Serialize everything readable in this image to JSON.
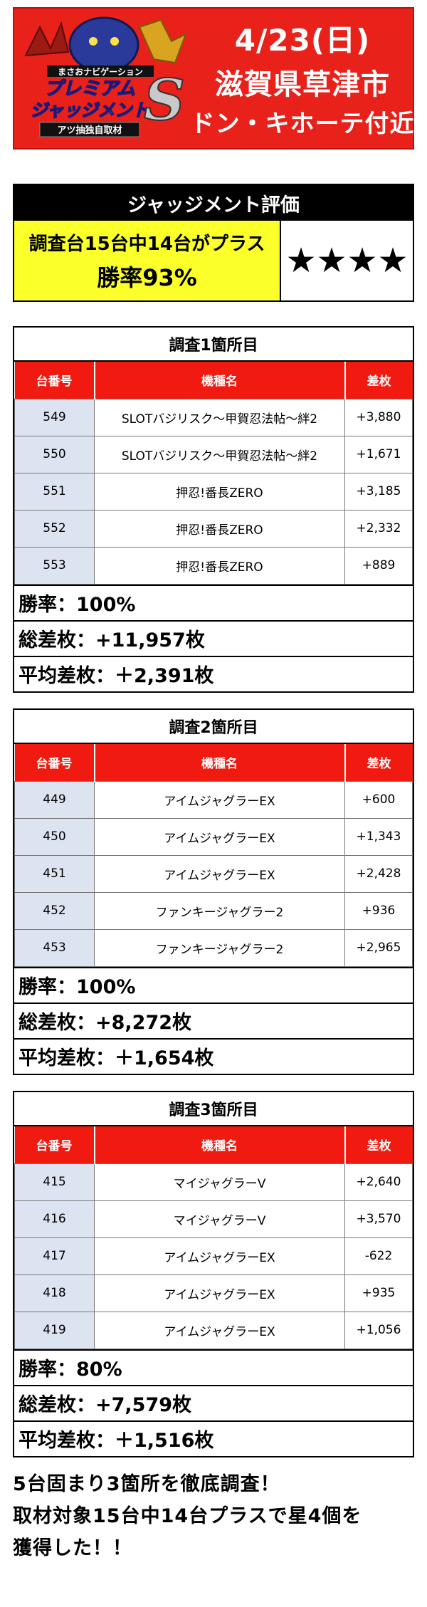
{
  "header": {
    "logo_line1": "まさおナビゲーション",
    "logo_line2": "プレミアム",
    "logo_line3": "ジャッジメント",
    "logo_letter": "S",
    "logo_badge": "アツ抽独自取材",
    "date": "4/23(日)",
    "city": "滋賀県草津市",
    "place": "ドン・キホーテ付近"
  },
  "judgement": {
    "title": "ジャッジメント評価",
    "line1": "調査台15台中14台がプラス",
    "line2": "勝率93%",
    "stars": "★★★★"
  },
  "columns": {
    "no": "台番号",
    "model": "機種名",
    "diff": "差枚"
  },
  "sections": [
    {
      "title": "調査1箇所目",
      "rows": [
        {
          "no": "549",
          "model": "SLOTバジリスク～甲賀忍法帖～絆2",
          "diff": "+3,880"
        },
        {
          "no": "550",
          "model": "SLOTバジリスク～甲賀忍法帖～絆2",
          "diff": "+1,671"
        },
        {
          "no": "551",
          "model": "押忍!番長ZERO",
          "diff": "+3,185"
        },
        {
          "no": "552",
          "model": "押忍!番長ZERO",
          "diff": "+2,332"
        },
        {
          "no": "553",
          "model": "押忍!番長ZERO",
          "diff": "+889"
        }
      ],
      "win_rate": "勝率：100%",
      "total": "総差枚：+11,957枚",
      "average": "平均差枚：＋2,391枚"
    },
    {
      "title": "調査2箇所目",
      "rows": [
        {
          "no": "449",
          "model": "アイムジャグラーEX",
          "diff": "+600"
        },
        {
          "no": "450",
          "model": "アイムジャグラーEX",
          "diff": "+1,343"
        },
        {
          "no": "451",
          "model": "アイムジャグラーEX",
          "diff": "+2,428"
        },
        {
          "no": "452",
          "model": "ファンキージャグラー2",
          "diff": "+936"
        },
        {
          "no": "453",
          "model": "ファンキージャグラー2",
          "diff": "+2,965"
        }
      ],
      "win_rate": "勝率：100%",
      "total": "総差枚：+8,272枚",
      "average": "平均差枚：＋1,654枚"
    },
    {
      "title": "調査3箇所目",
      "rows": [
        {
          "no": "415",
          "model": "マイジャグラーV",
          "diff": "+2,640"
        },
        {
          "no": "416",
          "model": "マイジャグラーV",
          "diff": "+3,570"
        },
        {
          "no": "417",
          "model": "アイムジャグラーEX",
          "diff": "-622"
        },
        {
          "no": "418",
          "model": "アイムジャグラーEX",
          "diff": "+935"
        },
        {
          "no": "419",
          "model": "アイムジャグラーEX",
          "diff": "+1,056"
        }
      ],
      "win_rate": "勝率：80%",
      "total": "総差枚：+7,579枚",
      "average": "平均差枚：＋1,516枚"
    }
  ],
  "footer": {
    "line1": "5台固まり3箇所を徹底調査！",
    "line2": "取材対象15台中14台プラスで星4個を",
    "line3": "獲得した！！"
  },
  "colors": {
    "header_red": "#e8211a",
    "table_header_red": "#f01a10",
    "highlight_yellow": "#fbff2a",
    "number_cell_blue": "#dde4f1"
  }
}
